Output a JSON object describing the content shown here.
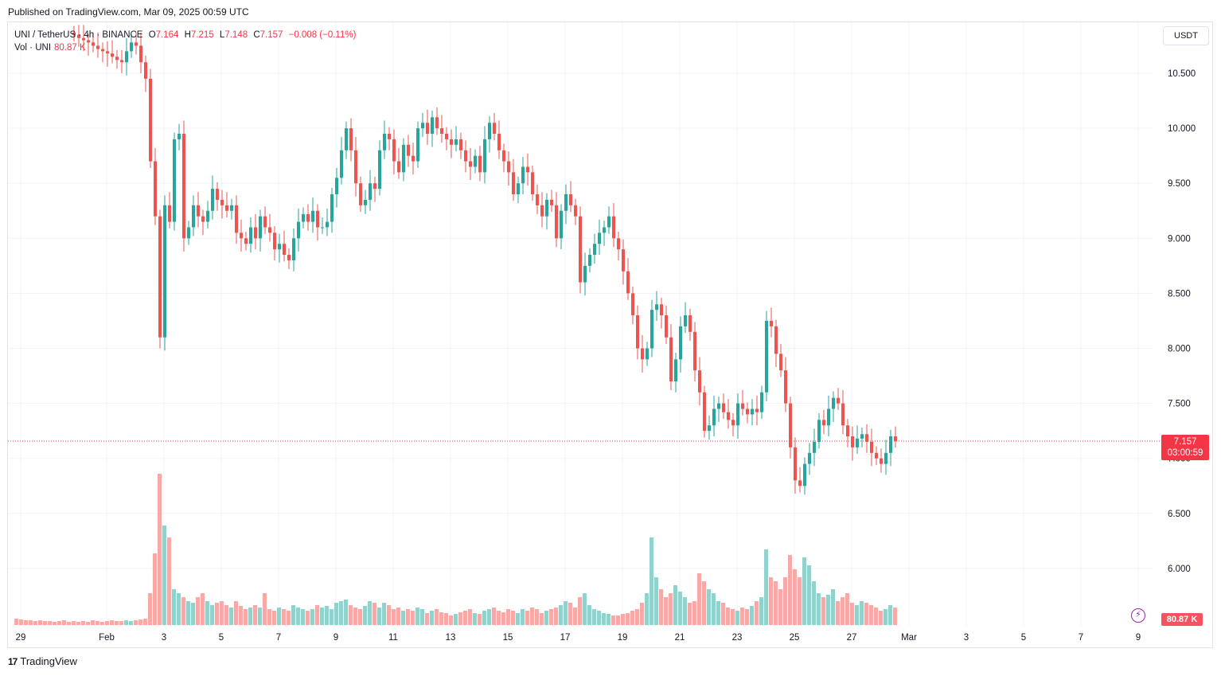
{
  "header": {
    "published": "Published on TradingView.com, Mar 09, 2025 00:59 UTC"
  },
  "legend": {
    "symbol": "UNI / TetherUS · 4h · BINANCE",
    "o_label": "O",
    "o_value": "7.164",
    "h_label": "H",
    "h_value": "7.215",
    "l_label": "L",
    "l_value": "7.148",
    "c_label": "C",
    "c_value": "7.157",
    "change": "−0.008 (−0.11%)",
    "vol_label": "Vol · UNI",
    "vol_value": "80.87 K"
  },
  "price_scale": {
    "unit": "USDT",
    "current_price": "7.157",
    "countdown": "03:00:59",
    "volume_tag": "80.87 K"
  },
  "footer": {
    "brand": "TradingView",
    "logo_glyph": "17"
  },
  "colors": {
    "up": "#26a69a",
    "down": "#ef5350",
    "up_vol": "#92d2cc",
    "down_vol": "#f7a9a7",
    "grid": "#f0f3fa",
    "text": "#131722",
    "current_line": "#f23645"
  },
  "chart_data": {
    "type": "candlestick",
    "symbol": "UNI / TetherUS",
    "interval": "4h",
    "exchange": "BINANCE",
    "y_unit": "USDT",
    "y_ticks": [
      "6.000",
      "6.500",
      "7.000",
      "7.500",
      "8.000",
      "8.500",
      "9.000",
      "9.500",
      "10.000",
      "10.500"
    ],
    "x_ticks": [
      {
        "label": "29",
        "bar": 0
      },
      {
        "label": "Feb",
        "bar": 18
      },
      {
        "label": "3",
        "bar": 30
      },
      {
        "label": "5",
        "bar": 42
      },
      {
        "label": "7",
        "bar": 54
      },
      {
        "label": "9",
        "bar": 66
      },
      {
        "label": "11",
        "bar": 78
      },
      {
        "label": "13",
        "bar": 90
      },
      {
        "label": "15",
        "bar": 102
      },
      {
        "label": "17",
        "bar": 114
      },
      {
        "label": "19",
        "bar": 126
      },
      {
        "label": "21",
        "bar": 138
      },
      {
        "label": "23",
        "bar": 150
      },
      {
        "label": "25",
        "bar": 162
      },
      {
        "label": "27",
        "bar": 174
      },
      {
        "label": "Mar",
        "bar": 186
      },
      {
        "label": "3",
        "bar": 198
      },
      {
        "label": "5",
        "bar": 210
      },
      {
        "label": "7",
        "bar": 222
      },
      {
        "label": "9",
        "bar": 234
      }
    ],
    "current_price": 7.157,
    "last_ohlc": {
      "open": 7.164,
      "high": 7.215,
      "low": 7.148,
      "close": 7.157
    },
    "last_volume": "80.87K",
    "closes": [
      11.3,
      11.25,
      11.2,
      11.15,
      11.1,
      11.05,
      11.0,
      10.95,
      10.92,
      10.9,
      10.88,
      10.87,
      10.85,
      10.82,
      10.8,
      10.78,
      10.75,
      10.72,
      10.7,
      10.68,
      10.65,
      10.62,
      10.6,
      10.7,
      10.78,
      10.75,
      10.6,
      10.45,
      9.7,
      9.2,
      8.1,
      9.3,
      9.15,
      9.9,
      9.95,
      9.0,
      9.1,
      9.3,
      9.2,
      9.15,
      9.25,
      9.45,
      9.35,
      9.3,
      9.25,
      9.3,
      9.05,
      9.0,
      8.95,
      9.1,
      9.0,
      9.2,
      9.1,
      9.05,
      8.9,
      8.95,
      8.85,
      8.8,
      9.0,
      9.15,
      9.22,
      9.15,
      9.25,
      9.1,
      9.1,
      9.15,
      9.4,
      9.55,
      9.8,
      10.0,
      9.8,
      9.5,
      9.3,
      9.35,
      9.5,
      9.45,
      9.8,
      9.95,
      9.9,
      9.7,
      9.6,
      9.85,
      9.75,
      9.7,
      10.0,
      10.05,
      9.95,
      10.1,
      10.0,
      9.95,
      9.9,
      9.85,
      9.9,
      9.8,
      9.7,
      9.65,
      9.75,
      9.6,
      9.9,
      10.05,
      9.95,
      9.8,
      9.7,
      9.6,
      9.4,
      9.5,
      9.65,
      9.6,
      9.4,
      9.3,
      9.2,
      9.35,
      9.3,
      9.0,
      9.25,
      9.4,
      9.3,
      9.2,
      8.6,
      8.75,
      8.85,
      8.95,
      9.05,
      9.1,
      9.2,
      9.0,
      8.9,
      8.7,
      8.5,
      8.3,
      8.0,
      7.9,
      8.0,
      8.35,
      8.4,
      8.3,
      8.1,
      7.7,
      7.9,
      8.2,
      8.3,
      8.15,
      7.8,
      7.6,
      7.25,
      7.3,
      7.45,
      7.5,
      7.42,
      7.35,
      7.3,
      7.5,
      7.45,
      7.4,
      7.45,
      7.42,
      7.6,
      8.25,
      8.2,
      7.95,
      7.8,
      7.5,
      7.1,
      6.8,
      6.75,
      6.95,
      7.05,
      7.15,
      7.35,
      7.3,
      7.45,
      7.55,
      7.5,
      7.3,
      7.2,
      7.1,
      7.18,
      7.22,
      7.15,
      7.05,
      7.0,
      6.95,
      7.05,
      7.2,
      7.157
    ],
    "volumes": [
      8,
      7,
      6,
      6,
      5,
      6,
      5,
      5,
      4,
      5,
      6,
      4,
      5,
      4,
      5,
      4,
      6,
      5,
      4,
      5,
      6,
      5,
      5,
      6,
      5,
      6,
      7,
      8,
      40,
      90,
      190,
      125,
      110,
      45,
      40,
      35,
      30,
      28,
      35,
      40,
      30,
      25,
      28,
      30,
      25,
      22,
      30,
      24,
      20,
      22,
      25,
      22,
      40,
      20,
      18,
      22,
      20,
      18,
      25,
      22,
      20,
      18,
      20,
      25,
      22,
      24,
      20,
      28,
      30,
      32,
      25,
      22,
      20,
      24,
      30,
      28,
      22,
      28,
      25,
      20,
      22,
      18,
      20,
      18,
      22,
      20,
      15,
      18,
      20,
      16,
      15,
      12,
      14,
      16,
      18,
      20,
      15,
      14,
      18,
      20,
      22,
      18,
      16,
      20,
      18,
      15,
      20,
      18,
      22,
      20,
      15,
      18,
      20,
      22,
      25,
      30,
      28,
      22,
      35,
      40,
      25,
      20,
      18,
      15,
      14,
      12,
      12,
      14,
      15,
      18,
      20,
      28,
      40,
      110,
      60,
      45,
      35,
      40,
      50,
      42,
      35,
      28,
      30,
      65,
      55,
      45,
      40,
      30,
      28,
      22,
      20,
      18,
      22,
      20,
      24,
      30,
      35,
      95,
      60,
      55,
      45,
      60,
      88,
      70,
      60,
      85,
      75,
      55,
      40,
      35,
      38,
      45,
      30,
      35,
      40,
      28,
      25,
      30,
      28,
      25,
      22,
      18,
      20,
      25,
      22
    ]
  }
}
